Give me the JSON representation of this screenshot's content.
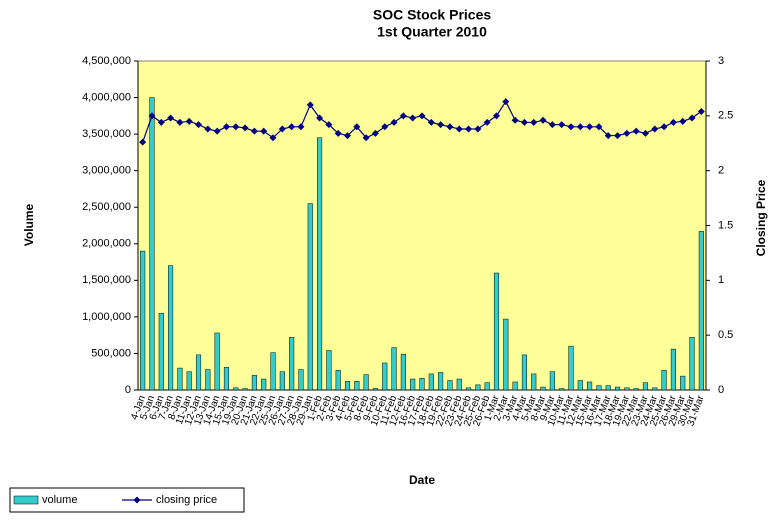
{
  "chart_data": {
    "type": "bar",
    "title": "SOC Stock Prices",
    "subtitle": "1st Quarter 2010",
    "x_label": "Date",
    "y_label": "Volume",
    "y2_label": "Closing Price",
    "categories": [
      "4-Jan",
      "5-Jan",
      "6-Jan",
      "7-Jan",
      "8-Jan",
      "11-Jan",
      "12-Jan",
      "13-Jan",
      "14-Jan",
      "15-Jan",
      "19-Jan",
      "20-Jan",
      "21-Jan",
      "22-Jan",
      "25-Jan",
      "26-Jan",
      "27-Jan",
      "28-Jan",
      "29-Jan",
      "1-Feb",
      "2-Feb",
      "3-Feb",
      "4-Feb",
      "5-Feb",
      "8-Feb",
      "9-Feb",
      "10-Feb",
      "11-Feb",
      "12-Feb",
      "16-Feb",
      "17-Feb",
      "18-Feb",
      "19-Feb",
      "22-Feb",
      "23-Feb",
      "24-Feb",
      "25-Feb",
      "26-Feb",
      "1-Mar",
      "2-Mar",
      "3-Mar",
      "4-Mar",
      "5-Mar",
      "8-Mar",
      "9-Mar",
      "10-Mar",
      "11-Mar",
      "12-Mar",
      "15-Mar",
      "16-Mar",
      "17-Mar",
      "18-Mar",
      "19-Mar",
      "22-Mar",
      "23-Mar",
      "24-Mar",
      "25-Mar",
      "26-Mar",
      "29-Mar",
      "30-Mar",
      "31-Mar"
    ],
    "series": [
      {
        "name": "volume",
        "type": "bar",
        "color": "#33cccc",
        "values": [
          1900000,
          4000000,
          1050000,
          1700000,
          300000,
          250000,
          480000,
          280000,
          780000,
          310000,
          30000,
          20000,
          200000,
          150000,
          510000,
          250000,
          720000,
          280000,
          2550000,
          3450000,
          540000,
          270000,
          120000,
          120000,
          210000,
          20000,
          370000,
          580000,
          490000,
          150000,
          160000,
          220000,
          240000,
          130000,
          150000,
          30000,
          70000,
          100000,
          1600000,
          970000,
          110000,
          480000,
          220000,
          40000,
          250000,
          20000,
          600000,
          130000,
          110000,
          60000,
          60000,
          40000,
          30000,
          20000,
          100000,
          30000,
          270000,
          560000,
          190000,
          720000,
          2170000
        ]
      },
      {
        "name": "closing price",
        "type": "line",
        "axis": "y2",
        "color": "#000080",
        "values": [
          2.26,
          2.5,
          2.44,
          2.48,
          2.44,
          2.45,
          2.42,
          2.38,
          2.36,
          2.4,
          2.4,
          2.39,
          2.36,
          2.36,
          2.3,
          2.38,
          2.4,
          2.4,
          2.6,
          2.48,
          2.42,
          2.34,
          2.32,
          2.4,
          2.3,
          2.34,
          2.4,
          2.44,
          2.5,
          2.48,
          2.5,
          2.44,
          2.42,
          2.4,
          2.38,
          2.38,
          2.38,
          2.44,
          2.5,
          2.63,
          2.46,
          2.44,
          2.44,
          2.46,
          2.42,
          2.42,
          2.4,
          2.4,
          2.4,
          2.4,
          2.32,
          2.32,
          2.34,
          2.36,
          2.34,
          2.38,
          2.4,
          2.44,
          2.45,
          2.48,
          2.54
        ]
      }
    ],
    "ylim": [
      0,
      4500000
    ],
    "yticks": [
      0,
      {
        "value": 500000,
        "label": "500,000"
      },
      {
        "value": 1000000,
        "label": "1,000,000"
      },
      {
        "value": 1500000,
        "label": "1,500,000"
      },
      {
        "value": 2000000,
        "label": "2,000,000"
      },
      {
        "value": 2500000,
        "label": "2,500,000"
      },
      {
        "value": 3000000,
        "label": "3,000,000"
      },
      {
        "value": 3500000,
        "label": "3,500,000"
      },
      {
        "value": 4000000,
        "label": "4,000,000"
      },
      {
        "value": 4500000,
        "label": "4,500,000"
      }
    ],
    "y2lim": [
      0,
      3
    ],
    "y2ticks": [
      0,
      0.5,
      1,
      1.5,
      2,
      2.5,
      3
    ],
    "plot_background": "#ffff99"
  }
}
